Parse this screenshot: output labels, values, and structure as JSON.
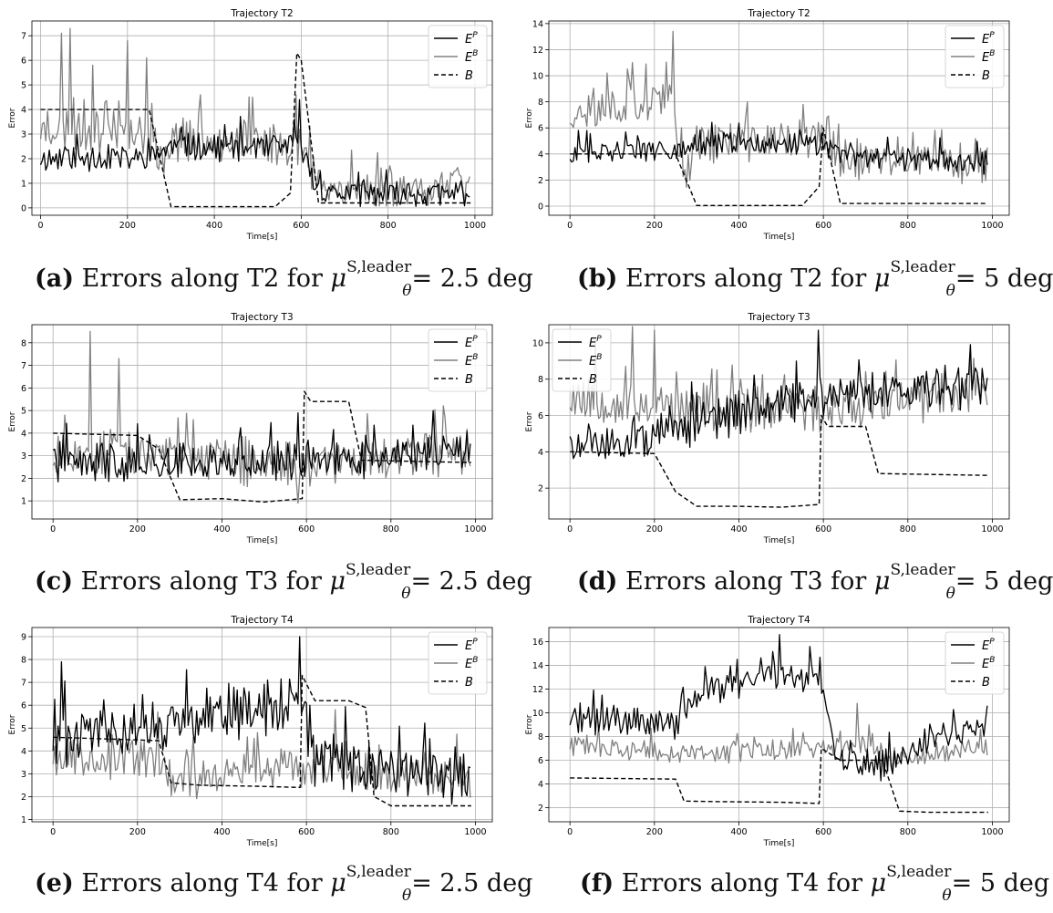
{
  "chart_data": [
    {
      "id": "a",
      "type": "line",
      "title": "Trajectory T2",
      "xlabel": "Time[s]",
      "ylabel": "Error",
      "xlim": [
        -20,
        1040
      ],
      "ylim": [
        -0.3,
        7.6
      ],
      "xticks": [
        0,
        200,
        400,
        600,
        800,
        1000
      ],
      "yticks": [
        0,
        1,
        2,
        3,
        4,
        5,
        6,
        7
      ],
      "grid": true,
      "legend": "top-right",
      "legend_entries": [
        "E^P",
        "E^B",
        "B"
      ],
      "caption": {
        "label": "(a)",
        "text": "Errors along T2 for",
        "sup": "S,leader",
        "sub": "θ",
        "value": "= 2.5 deg"
      },
      "series": [
        {
          "name": "E^P",
          "style": "solid",
          "color": "#000000",
          "seed": 11,
          "trend": [
            [
              0,
              2.0
            ],
            [
              250,
              2.0
            ],
            [
              300,
              2.5
            ],
            [
              550,
              2.4
            ],
            [
              580,
              2.6
            ],
            [
              600,
              2.5
            ],
            [
              630,
              1.0
            ],
            [
              650,
              0.6
            ],
            [
              990,
              0.5
            ]
          ],
          "noise": 0.55,
          "spikes": [
            [
              595,
              4.4
            ]
          ]
        },
        {
          "name": "E^B",
          "style": "solid",
          "color": "#808080",
          "seed": 23,
          "trend": [
            [
              0,
              3.2
            ],
            [
              250,
              3.0
            ],
            [
              270,
              1.6
            ],
            [
              300,
              2.8
            ],
            [
              550,
              2.6
            ],
            [
              600,
              2.5
            ],
            [
              640,
              0.8
            ],
            [
              990,
              0.7
            ]
          ],
          "noise": 0.9,
          "spikes": [
            [
              70,
              7.3
            ],
            [
              50,
              7.1
            ],
            [
              200,
              6.8
            ],
            [
              245,
              6.1
            ],
            [
              120,
              5.8
            ],
            [
              590,
              4.6
            ]
          ]
        },
        {
          "name": "B",
          "style": "dashed",
          "color": "#000000",
          "points": [
            [
              0,
              4.0
            ],
            [
              250,
              4.0
            ],
            [
              300,
              0.05
            ],
            [
              540,
              0.05
            ],
            [
              575,
              0.6
            ],
            [
              590,
              6.3
            ],
            [
              600,
              6.0
            ],
            [
              640,
              0.2
            ],
            [
              990,
              0.2
            ]
          ]
        }
      ]
    },
    {
      "id": "b",
      "type": "line",
      "title": "Trajectory T2",
      "xlabel": "Time[s]",
      "ylabel": "Error",
      "xlim": [
        -50,
        1040
      ],
      "ylim": [
        -0.7,
        14.2
      ],
      "xticks": [
        0,
        200,
        400,
        600,
        800,
        1000
      ],
      "yticks": [
        0,
        2,
        4,
        6,
        8,
        10,
        12,
        14
      ],
      "grid": true,
      "legend": "top-right",
      "legend_entries": [
        "E^P",
        "E^B",
        "B"
      ],
      "caption": {
        "label": "(b)",
        "text": "Errors along T2 for",
        "sup": "S,leader",
        "sub": "θ",
        "value": "= 5 deg"
      },
      "series": [
        {
          "name": "E^P",
          "style": "solid",
          "color": "#000000",
          "seed": 31,
          "trend": [
            [
              0,
              4.0
            ],
            [
              250,
              4.3
            ],
            [
              300,
              4.6
            ],
            [
              550,
              4.8
            ],
            [
              600,
              4.6
            ],
            [
              640,
              3.8
            ],
            [
              990,
              3.3
            ]
          ],
          "noise": 0.9,
          "spikes": []
        },
        {
          "name": "E^B",
          "style": "solid",
          "color": "#808080",
          "seed": 37,
          "trend": [
            [
              0,
              7.0
            ],
            [
              240,
              8.0
            ],
            [
              270,
              2.2
            ],
            [
              300,
              4.8
            ],
            [
              600,
              5.2
            ],
            [
              640,
              3.6
            ],
            [
              990,
              3.3
            ]
          ],
          "noise": 1.5,
          "spikes": [
            [
              245,
              13.4
            ],
            [
              150,
              11.0
            ],
            [
              180,
              10.9
            ],
            [
              90,
              10.2
            ]
          ]
        },
        {
          "name": "B",
          "style": "dashed",
          "color": "#000000",
          "points": [
            [
              0,
              4.0
            ],
            [
              250,
              4.0
            ],
            [
              300,
              0.05
            ],
            [
              550,
              0.05
            ],
            [
              590,
              1.5
            ],
            [
              600,
              6.0
            ],
            [
              640,
              0.2
            ],
            [
              990,
              0.2
            ]
          ]
        }
      ]
    },
    {
      "id": "c",
      "type": "line",
      "title": "Trajectory T3",
      "xlabel": "Time[s]",
      "ylabel": "Error",
      "xlim": [
        -50,
        1040
      ],
      "ylim": [
        0.2,
        8.8
      ],
      "xticks": [
        0,
        200,
        400,
        600,
        800,
        1000
      ],
      "yticks": [
        1,
        2,
        3,
        4,
        5,
        6,
        7,
        8
      ],
      "grid": true,
      "legend": "top-right",
      "legend_entries": [
        "E^P",
        "E^B",
        "B"
      ],
      "caption": {
        "label": "(c)",
        "text": "Errors along T3 for",
        "sup": "S,leader",
        "sub": "θ",
        "value": "= 2.5 deg"
      },
      "series": [
        {
          "name": "E^P",
          "style": "solid",
          "color": "#000000",
          "seed": 41,
          "trend": [
            [
              0,
              2.6
            ],
            [
              250,
              2.7
            ],
            [
              600,
              2.7
            ],
            [
              990,
              3.2
            ]
          ],
          "noise": 0.85,
          "spikes": [
            [
              580,
              4.9
            ],
            [
              900,
              5.0
            ]
          ]
        },
        {
          "name": "E^B",
          "style": "solid",
          "color": "#808080",
          "seed": 43,
          "trend": [
            [
              0,
              3.0
            ],
            [
              250,
              3.0
            ],
            [
              600,
              2.6
            ],
            [
              990,
              3.2
            ]
          ],
          "noise": 1.0,
          "spikes": [
            [
              90,
              8.5
            ],
            [
              155,
              7.3
            ],
            [
              30,
              4.8
            ],
            [
              580,
              0.9
            ]
          ]
        },
        {
          "name": "B",
          "style": "dashed",
          "color": "#000000",
          "points": [
            [
              0,
              4.0
            ],
            [
              200,
              3.9
            ],
            [
              250,
              3.3
            ],
            [
              300,
              1.05
            ],
            [
              400,
              1.1
            ],
            [
              500,
              0.95
            ],
            [
              590,
              1.1
            ],
            [
              595,
              5.85
            ],
            [
              610,
              5.4
            ],
            [
              700,
              5.4
            ],
            [
              730,
              2.8
            ],
            [
              990,
              2.7
            ]
          ]
        }
      ]
    },
    {
      "id": "d",
      "type": "line",
      "title": "Trajectory T3",
      "xlabel": "Time[s]",
      "ylabel": "Error",
      "xlim": [
        -50,
        1040
      ],
      "ylim": [
        0.3,
        11.0
      ],
      "xticks": [
        0,
        200,
        400,
        600,
        800,
        1000
      ],
      "yticks": [
        2,
        4,
        6,
        8,
        10
      ],
      "grid": true,
      "legend": "top-left",
      "legend_entries": [
        "E^P",
        "E^B",
        "B"
      ],
      "caption": {
        "label": "(d)",
        "text": "Errors along T3 for",
        "sup": "S,leader",
        "sub": "θ",
        "value": "= 5 deg"
      },
      "series": [
        {
          "name": "E^P",
          "style": "solid",
          "color": "#000000",
          "seed": 51,
          "trend": [
            [
              0,
              4.0
            ],
            [
              250,
              5.0
            ],
            [
              450,
              6.6
            ],
            [
              600,
              7.0
            ],
            [
              990,
              7.6
            ]
          ],
          "noise": 1.1,
          "spikes": [
            [
              590,
              10.7
            ],
            [
              950,
              9.9
            ]
          ]
        },
        {
          "name": "E^B",
          "style": "solid",
          "color": "#808080",
          "seed": 53,
          "trend": [
            [
              0,
              7.0
            ],
            [
              250,
              6.3
            ],
            [
              600,
              6.3
            ],
            [
              990,
              7.4
            ]
          ],
          "noise": 1.3,
          "spikes": [
            [
              150,
              10.9
            ],
            [
              200,
              10.7
            ],
            [
              60,
              10.3
            ]
          ]
        },
        {
          "name": "B",
          "style": "dashed",
          "color": "#000000",
          "points": [
            [
              0,
              4.0
            ],
            [
              200,
              3.9
            ],
            [
              250,
              1.8
            ],
            [
              300,
              1.0
            ],
            [
              400,
              1.0
            ],
            [
              500,
              0.95
            ],
            [
              590,
              1.1
            ],
            [
              595,
              6.0
            ],
            [
              610,
              5.4
            ],
            [
              700,
              5.4
            ],
            [
              730,
              2.8
            ],
            [
              990,
              2.7
            ]
          ]
        }
      ]
    },
    {
      "id": "e",
      "type": "line",
      "title": "Trajectory T4",
      "xlabel": "Time[s]",
      "ylabel": "Error",
      "xlim": [
        -50,
        1040
      ],
      "ylim": [
        0.9,
        9.4
      ],
      "xticks": [
        0,
        200,
        400,
        600,
        800,
        1000
      ],
      "yticks": [
        1,
        2,
        3,
        4,
        5,
        6,
        7,
        8,
        9
      ],
      "grid": true,
      "legend": "top-right",
      "legend_entries": [
        "E^P",
        "E^B",
        "B"
      ],
      "caption": {
        "label": "(e)",
        "text": "Errors along T4 for",
        "sup": "S,leader",
        "sub": "θ",
        "value": "= 2.5 deg"
      },
      "series": [
        {
          "name": "E^P",
          "style": "solid",
          "color": "#000000",
          "seed": 61,
          "trend": [
            [
              0,
              4.5
            ],
            [
              250,
              4.8
            ],
            [
              350,
              5.3
            ],
            [
              550,
              6.0
            ],
            [
              590,
              6.3
            ],
            [
              620,
              3.5
            ],
            [
              990,
              2.8
            ]
          ],
          "noise": 1.2,
          "spikes": [
            [
              585,
              9.0
            ],
            [
              20,
              7.9
            ]
          ]
        },
        {
          "name": "E^B",
          "style": "solid",
          "color": "#808080",
          "seed": 67,
          "trend": [
            [
              0,
              3.8
            ],
            [
              250,
              3.6
            ],
            [
              280,
              2.6
            ],
            [
              550,
              3.3
            ],
            [
              600,
              3.2
            ],
            [
              990,
              2.8
            ]
          ],
          "noise": 0.9,
          "spikes": [
            [
              250,
              5.7
            ],
            [
              670,
              5.8
            ]
          ]
        },
        {
          "name": "B",
          "style": "dashed",
          "color": "#000000",
          "points": [
            [
              0,
              4.6
            ],
            [
              250,
              4.45
            ],
            [
              280,
              2.6
            ],
            [
              350,
              2.5
            ],
            [
              500,
              2.45
            ],
            [
              585,
              2.4
            ],
            [
              590,
              7.3
            ],
            [
              620,
              6.2
            ],
            [
              700,
              6.2
            ],
            [
              740,
              5.9
            ],
            [
              760,
              2.0
            ],
            [
              800,
              1.6
            ],
            [
              990,
              1.6
            ]
          ]
        }
      ]
    },
    {
      "id": "f",
      "type": "line",
      "title": "Trajectory T4",
      "xlabel": "Time[s]",
      "ylabel": "Error",
      "xlim": [
        -50,
        1040
      ],
      "ylim": [
        0.8,
        17.2
      ],
      "xticks": [
        0,
        200,
        400,
        600,
        800,
        1000
      ],
      "yticks": [
        2,
        4,
        6,
        8,
        10,
        12,
        14,
        16
      ],
      "grid": true,
      "legend": "top-right",
      "legend_entries": [
        "E^P",
        "E^B",
        "B"
      ],
      "caption": {
        "label": "(f)",
        "text": "Errors along T4 for",
        "sup": "S,leader",
        "sub": "θ",
        "value": "= 5 deg"
      },
      "series": [
        {
          "name": "E^P",
          "style": "solid",
          "color": "#000000",
          "seed": 71,
          "trend": [
            [
              0,
              9.5
            ],
            [
              250,
              9.0
            ],
            [
              300,
              11.5
            ],
            [
              450,
              13.0
            ],
            [
              590,
              13.0
            ],
            [
              630,
              6.0
            ],
            [
              770,
              5.5
            ],
            [
              850,
              8.0
            ],
            [
              990,
              8.5
            ]
          ],
          "noise": 1.3,
          "spikes": [
            [
              495,
              16.6
            ],
            [
              570,
              15.6
            ]
          ]
        },
        {
          "name": "E^B",
          "style": "solid",
          "color": "#808080",
          "seed": 73,
          "trend": [
            [
              0,
              7.3
            ],
            [
              250,
              6.5
            ],
            [
              600,
              7.0
            ],
            [
              700,
              7.2
            ],
            [
              760,
              6.0
            ],
            [
              990,
              7.0
            ]
          ],
          "noise": 0.9,
          "spikes": [
            [
              680,
              10.8
            ]
          ]
        },
        {
          "name": "B",
          "style": "dashed",
          "color": "#000000",
          "points": [
            [
              0,
              4.5
            ],
            [
              250,
              4.4
            ],
            [
              270,
              2.55
            ],
            [
              350,
              2.5
            ],
            [
              500,
              2.45
            ],
            [
              590,
              2.35
            ],
            [
              595,
              7.0
            ],
            [
              640,
              6.0
            ],
            [
              740,
              6.0
            ],
            [
              780,
              1.7
            ],
            [
              850,
              1.6
            ],
            [
              990,
              1.6
            ]
          ]
        }
      ]
    }
  ]
}
